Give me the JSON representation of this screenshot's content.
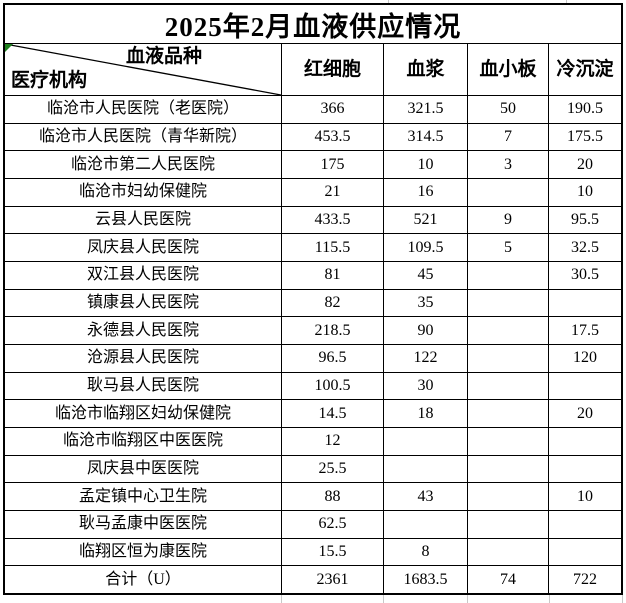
{
  "title": "2025年2月血液供应情况",
  "header": {
    "corner_top": "血液品种",
    "corner_bottom": "医疗机构",
    "columns": [
      "红细胞",
      "血浆",
      "血小板",
      "冷沉淀"
    ]
  },
  "rows": [
    {
      "name": "临沧市人民医院（老医院）",
      "values": [
        "366",
        "321.5",
        "50",
        "190.5"
      ]
    },
    {
      "name": "临沧市人民医院（青华新院）",
      "values": [
        "453.5",
        "314.5",
        "7",
        "175.5"
      ]
    },
    {
      "name": "临沧市第二人民医院",
      "values": [
        "175",
        "10",
        "3",
        "20"
      ]
    },
    {
      "name": "临沧市妇幼保健院",
      "values": [
        "21",
        "16",
        "",
        "10"
      ]
    },
    {
      "name": "云县人民医院",
      "values": [
        "433.5",
        "521",
        "9",
        "95.5"
      ]
    },
    {
      "name": "凤庆县人民医院",
      "values": [
        "115.5",
        "109.5",
        "5",
        "32.5"
      ]
    },
    {
      "name": "双江县人民医院",
      "values": [
        "81",
        "45",
        "",
        "30.5"
      ]
    },
    {
      "name": "镇康县人民医院",
      "values": [
        "82",
        "35",
        "",
        ""
      ]
    },
    {
      "name": "永德县人民医院",
      "values": [
        "218.5",
        "90",
        "",
        "17.5"
      ]
    },
    {
      "name": "沧源县人民医院",
      "values": [
        "96.5",
        "122",
        "",
        "120"
      ]
    },
    {
      "name": "耿马县人民医院",
      "values": [
        "100.5",
        "30",
        "",
        ""
      ]
    },
    {
      "name": "临沧市临翔区妇幼保健院",
      "values": [
        "14.5",
        "18",
        "",
        "20"
      ]
    },
    {
      "name": "临沧市临翔区中医医院",
      "values": [
        "12",
        "",
        "",
        ""
      ]
    },
    {
      "name": "凤庆县中医医院",
      "values": [
        "25.5",
        "",
        "",
        ""
      ]
    },
    {
      "name": "孟定镇中心卫生院",
      "values": [
        "88",
        "43",
        "",
        "10"
      ]
    },
    {
      "name": "耿马孟康中医医院",
      "values": [
        "62.5",
        "",
        "",
        ""
      ]
    },
    {
      "name": "临翔区恒为康医院",
      "values": [
        "15.5",
        "8",
        "",
        ""
      ]
    }
  ],
  "total_row": {
    "name": "合计（U）",
    "values": [
      "2361",
      "1683.5",
      "74",
      "722"
    ]
  },
  "colors": {
    "border": "#000000",
    "text": "#000000",
    "background": "#ffffff",
    "error_indicator": "#1b7e1b",
    "gridline": "#c8c8c8"
  }
}
